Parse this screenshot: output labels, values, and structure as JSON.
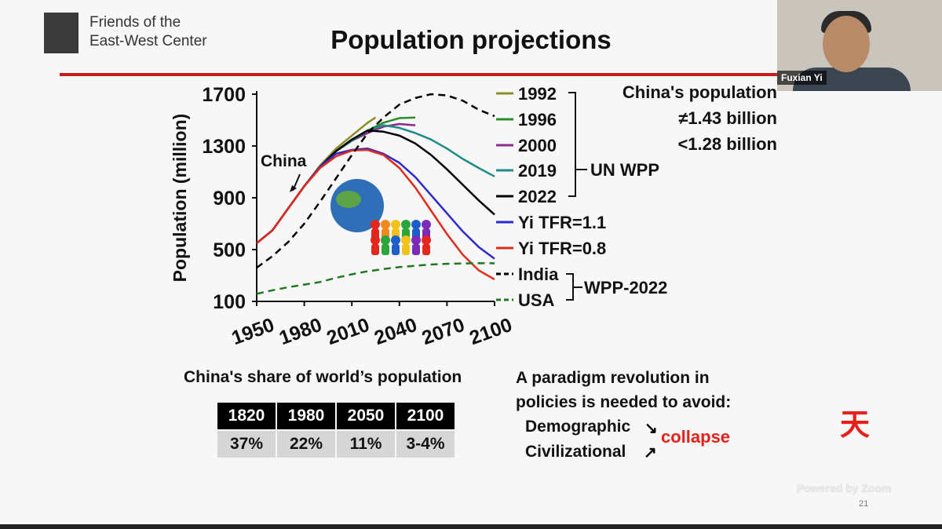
{
  "header": {
    "org_line1": "Friends of the",
    "org_line2": "East-West Center",
    "title": "Population projections"
  },
  "video": {
    "speaker_name": "Fuxian Yi"
  },
  "chart_data": {
    "type": "line",
    "ylabel": "Population (million)",
    "ylim": [
      100,
      1700
    ],
    "yticks": [
      100,
      500,
      900,
      1300,
      1700
    ],
    "xlim": [
      1950,
      2100
    ],
    "xticks": [
      1950,
      1980,
      2010,
      2040,
      2070,
      2100
    ],
    "annotation": "China",
    "series": [
      {
        "name": "1992",
        "color": "#8c8c2a",
        "dash": false,
        "x": [
          1950,
          1960,
          1970,
          1980,
          1990,
          2000,
          2010,
          2020,
          2025
        ],
        "values": [
          550,
          650,
          820,
          990,
          1150,
          1280,
          1380,
          1480,
          1520
        ]
      },
      {
        "name": "1996",
        "color": "#2a8c2a",
        "dash": false,
        "x": [
          1950,
          1960,
          1970,
          1980,
          1990,
          2000,
          2010,
          2020,
          2030,
          2040,
          2050
        ],
        "values": [
          550,
          650,
          820,
          990,
          1140,
          1260,
          1350,
          1420,
          1480,
          1515,
          1520
        ]
      },
      {
        "name": "2000",
        "color": "#8c2a8c",
        "dash": false,
        "x": [
          1950,
          1960,
          1970,
          1980,
          1990,
          2000,
          2010,
          2020,
          2030,
          2040,
          2050
        ],
        "values": [
          550,
          650,
          820,
          990,
          1140,
          1260,
          1340,
          1400,
          1450,
          1470,
          1460
        ]
      },
      {
        "name": "2019",
        "color": "#1f8a8a",
        "dash": false,
        "x": [
          1950,
          1960,
          1970,
          1980,
          1990,
          2000,
          2010,
          2020,
          2030,
          2040,
          2050,
          2060,
          2070,
          2080,
          2090,
          2100
        ],
        "values": [
          550,
          650,
          820,
          990,
          1140,
          1260,
          1340,
          1420,
          1460,
          1440,
          1400,
          1350,
          1280,
          1200,
          1130,
          1065
        ]
      },
      {
        "name": "2022",
        "color": "#000000",
        "dash": false,
        "x": [
          1950,
          1960,
          1970,
          1980,
          1990,
          2000,
          2010,
          2020,
          2030,
          2040,
          2050,
          2060,
          2070,
          2080,
          2090,
          2100
        ],
        "values": [
          550,
          650,
          820,
          990,
          1140,
          1260,
          1350,
          1420,
          1410,
          1380,
          1320,
          1230,
          1120,
          1000,
          880,
          770
        ]
      },
      {
        "name": "Yi TFR=1.1",
        "color": "#2b2bcc",
        "dash": false,
        "x": [
          1950,
          1960,
          1970,
          1980,
          1990,
          2000,
          2010,
          2020,
          2030,
          2040,
          2050,
          2060,
          2070,
          2080,
          2090,
          2100
        ],
        "values": [
          550,
          650,
          820,
          990,
          1140,
          1240,
          1270,
          1280,
          1240,
          1170,
          1060,
          920,
          780,
          640,
          520,
          430
        ]
      },
      {
        "name": "Yi TFR=0.8",
        "color": "#e02a1a",
        "dash": false,
        "x": [
          1950,
          1960,
          1970,
          1980,
          1990,
          2000,
          2010,
          2020,
          2030,
          2040,
          2050,
          2060,
          2070,
          2080,
          2090,
          2100
        ],
        "values": [
          550,
          650,
          820,
          990,
          1130,
          1220,
          1265,
          1270,
          1230,
          1130,
          980,
          800,
          620,
          460,
          340,
          270
        ]
      },
      {
        "name": "India",
        "color": "#000000",
        "dash": true,
        "x": [
          1950,
          1960,
          1970,
          1980,
          1990,
          2000,
          2010,
          2020,
          2030,
          2040,
          2050,
          2060,
          2070,
          2080,
          2090,
          2100
        ],
        "values": [
          360,
          450,
          560,
          700,
          870,
          1050,
          1230,
          1400,
          1520,
          1620,
          1670,
          1700,
          1690,
          1650,
          1580,
          1530
        ]
      },
      {
        "name": "USA",
        "color": "#1f7a1f",
        "dash": true,
        "x": [
          1950,
          1960,
          1970,
          1980,
          1990,
          2000,
          2010,
          2020,
          2030,
          2040,
          2050,
          2060,
          2070,
          2080,
          2090,
          2100
        ],
        "values": [
          158,
          186,
          210,
          230,
          250,
          282,
          309,
          333,
          350,
          365,
          375,
          385,
          390,
          393,
          395,
          394
        ]
      }
    ],
    "legend": [
      "1992",
      "1996",
      "2000",
      "2019",
      "2022",
      "Yi TFR=1.1",
      "Yi TFR=0.8",
      "India",
      "USA"
    ],
    "group_labels": {
      "un_wpp": "UN WPP",
      "wpp_2022": "WPP-2022"
    },
    "note_title": "China's population",
    "note_neq": "≠1.43 billion",
    "note_lt": "<1.28 billion"
  },
  "share_table": {
    "title": "China's share of world’s population",
    "years": [
      "1820",
      "1980",
      "2050",
      "2100"
    ],
    "shares": [
      "37%",
      "22%",
      "11%",
      "3-4%"
    ]
  },
  "paradigm": {
    "line1": "A paradigm revolution in",
    "line2": "policies is needed to avoid:",
    "demographic": "Demographic",
    "civilizational": "Civilizational",
    "arrow_down": "↘",
    "arrow_up": "↗",
    "collapse": "collapse"
  },
  "seal": "天",
  "footer": {
    "powered": "Powered by Zoom",
    "page": "21"
  }
}
